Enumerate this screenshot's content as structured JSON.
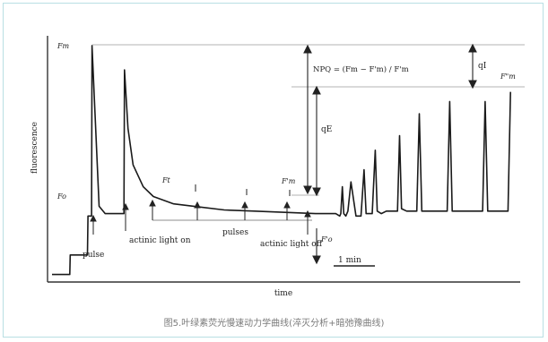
{
  "caption": "图5.叶绿素荧光慢速动力学曲线(淬灭分析+暗弛豫曲线)",
  "chart_data": {
    "type": "line",
    "title": "",
    "xlabel": "time",
    "ylabel": "fluorescence",
    "x_unit": "min",
    "scale_bar": "1 min",
    "xlim": [
      0,
      9.1
    ],
    "ylim": [
      0,
      100
    ],
    "series": [
      {
        "x": [
          0,
          0.35,
          0.36,
          0.7,
          0.71,
          0.78,
          0.79,
          0.93,
          1.05,
          1.3,
          1.4,
          1.42,
          1.43,
          1.5,
          1.6,
          1.8,
          2.0,
          2.4,
          2.8,
          3.4,
          4.0,
          4.6,
          5.2,
          5.6,
          5.68,
          5.7,
          5.73,
          5.76,
          5.8,
          5.84,
          5.9,
          6.0,
          6.1,
          6.16,
          6.2,
          6.32,
          6.38,
          6.42,
          6.5,
          6.6,
          6.7,
          6.82,
          6.86,
          6.9,
          7.0,
          7.2,
          7.25,
          7.3,
          7.4,
          7.6,
          7.8,
          7.85,
          7.9,
          8.0,
          8.3,
          8.5,
          8.55,
          8.6,
          8.7,
          8.9,
          9.0,
          9.05
        ],
        "y": [
          2,
          2,
          10,
          10,
          26,
          26,
          96,
          30,
          27,
          27,
          27,
          27,
          86,
          62,
          47,
          38,
          34,
          31,
          30,
          28.5,
          28,
          27.5,
          27,
          27,
          26,
          27,
          38,
          27,
          26,
          28,
          40,
          26,
          26,
          45,
          27,
          27,
          53,
          28,
          27,
          28,
          28,
          28,
          59,
          29,
          28,
          28,
          68,
          28,
          28,
          28,
          28,
          73,
          28,
          28,
          28,
          28,
          73,
          28,
          28,
          28,
          28,
          77
        ]
      }
    ],
    "markers": [
      {
        "text": "Fm"
      },
      {
        "text": "Fo"
      },
      {
        "text": "Ft"
      },
      {
        "text": "F'm"
      },
      {
        "text": "F'o"
      },
      {
        "text": "F\"m"
      },
      {
        "text": "qE"
      },
      {
        "text": "qI"
      },
      {
        "text": "NPQ = (Fm − F'm) / F'm"
      }
    ],
    "annotations": [
      {
        "text": "pulse"
      },
      {
        "text": "actinic light on"
      },
      {
        "text": "pulses"
      },
      {
        "text": "actinic light off"
      }
    ],
    "grid": false,
    "legend": "none"
  }
}
